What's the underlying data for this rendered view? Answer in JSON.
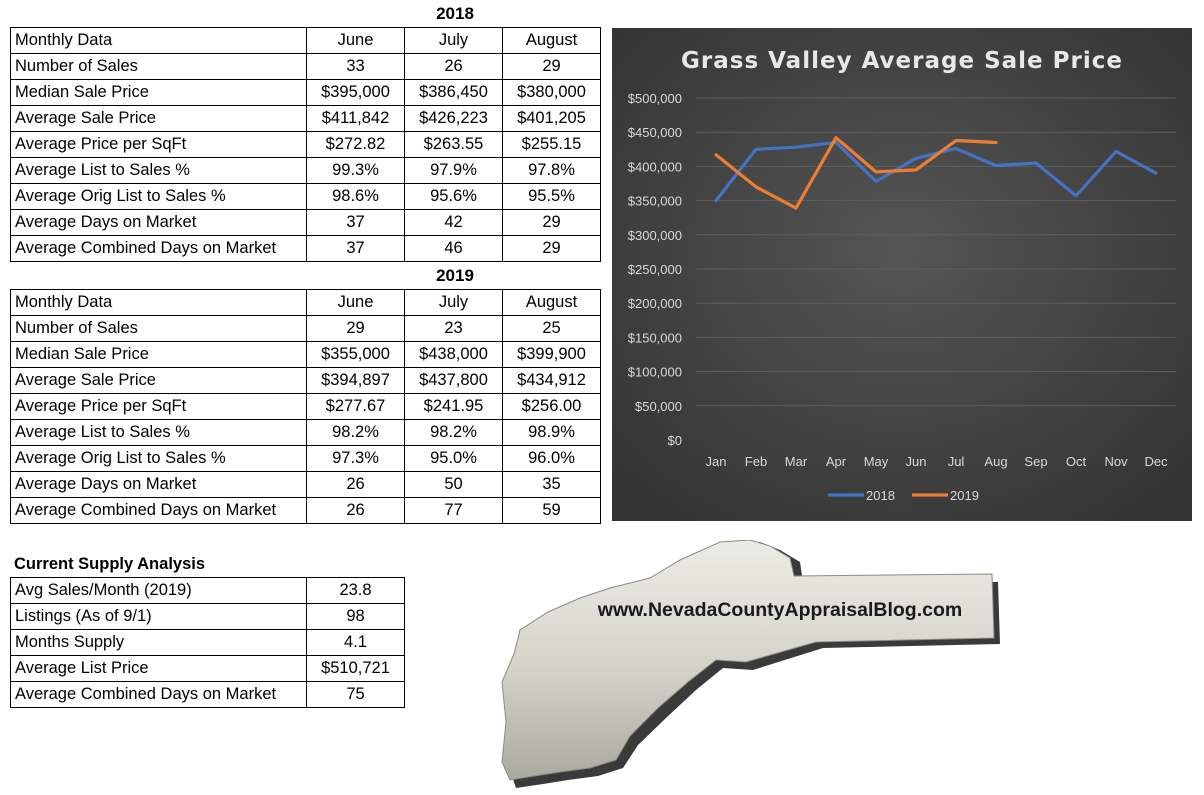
{
  "table_2018": {
    "title": "2018",
    "headers": [
      "Monthly Data",
      "June",
      "July",
      "August"
    ],
    "rows": [
      [
        "Number of Sales",
        "33",
        "26",
        "29"
      ],
      [
        "Median Sale Price",
        "$395,000",
        "$386,450",
        "$380,000"
      ],
      [
        "Average Sale Price",
        "$411,842",
        "$426,223",
        "$401,205"
      ],
      [
        "Average Price per SqFt",
        "$272.82",
        "$263.55",
        "$255.15"
      ],
      [
        "Average List to Sales %",
        "99.3%",
        "97.9%",
        "97.8%"
      ],
      [
        "Average Orig List to Sales %",
        "98.6%",
        "95.6%",
        "95.5%"
      ],
      [
        "Average Days on Market",
        "37",
        "42",
        "29"
      ],
      [
        "Average Combined Days on Market",
        "37",
        "46",
        "29"
      ]
    ]
  },
  "table_2019": {
    "title": "2019",
    "headers": [
      "Monthly Data",
      "June",
      "July",
      "August"
    ],
    "rows": [
      [
        "Number of Sales",
        "29",
        "23",
        "25"
      ],
      [
        "Median Sale Price",
        "$355,000",
        "$438,000",
        "$399,900"
      ],
      [
        "Average Sale Price",
        "$394,897",
        "$437,800",
        "$434,912"
      ],
      [
        "Average Price per SqFt",
        "$277.67",
        "$241.95",
        "$256.00"
      ],
      [
        "Average List to Sales %",
        "98.2%",
        "98.2%",
        "98.9%"
      ],
      [
        "Average Orig List to Sales %",
        "97.3%",
        "95.0%",
        "96.0%"
      ],
      [
        "Average Days on Market",
        "26",
        "50",
        "35"
      ],
      [
        "Average Combined Days on Market",
        "26",
        "77",
        "59"
      ]
    ]
  },
  "supply": {
    "title": "Current Supply Analysis",
    "rows": [
      [
        "Avg Sales/Month (2019)",
        "23.8"
      ],
      [
        "Listings (As of 9/1)",
        "98"
      ],
      [
        "Months Supply",
        "4.1"
      ],
      [
        "Average List Price",
        "$510,721"
      ],
      [
        "Average Combined Days on Market",
        "75"
      ]
    ]
  },
  "logo": {
    "text": "www.NevadaCountyAppraisalBlog.com"
  },
  "chart_data": {
    "type": "line",
    "title": "Grass Valley Average Sale Price",
    "xlabel": "",
    "ylabel": "",
    "categories": [
      "Jan",
      "Feb",
      "Mar",
      "Apr",
      "May",
      "Jun",
      "Jul",
      "Aug",
      "Sep",
      "Oct",
      "Nov",
      "Dec"
    ],
    "y_ticks": [
      "$0",
      "$50,000",
      "$100,000",
      "$150,000",
      "$200,000",
      "$250,000",
      "$300,000",
      "$350,000",
      "$400,000",
      "$450,000",
      "$500,000"
    ],
    "ylim": [
      0,
      500000
    ],
    "grid": true,
    "legend_position": "bottom",
    "background": "#404040",
    "series": [
      {
        "name": "2018",
        "color": "#4472C4",
        "values": [
          350000,
          425000,
          428000,
          435000,
          378000,
          411842,
          426223,
          401205,
          405000,
          357000,
          422000,
          390000
        ]
      },
      {
        "name": "2019",
        "color": "#ED7D31",
        "values": [
          417000,
          370000,
          339000,
          442000,
          392000,
          394897,
          437800,
          434912,
          null,
          null,
          null,
          null
        ]
      }
    ]
  }
}
